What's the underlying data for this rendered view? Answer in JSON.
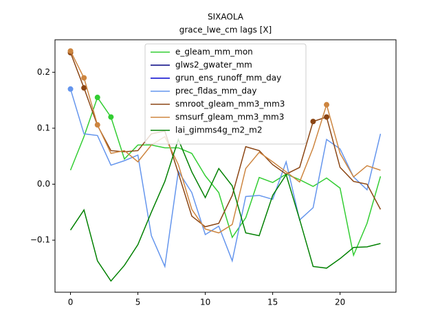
{
  "chart_data": {
    "type": "line",
    "title": "SIXAOLA",
    "subtitle": "grace_lwe_cm lags [X]",
    "x": [
      0,
      1,
      2,
      3,
      4,
      5,
      6,
      7,
      8,
      9,
      10,
      11,
      12,
      13,
      14,
      15,
      16,
      17,
      18,
      19,
      20,
      21,
      22,
      23
    ],
    "series": [
      {
        "name": "e_gleam_mm_mon",
        "color": "#32cd32",
        "values": [
          0.025,
          0.085,
          0.155,
          0.12,
          0.045,
          0.07,
          0.07,
          0.065,
          0.065,
          0.055,
          0.015,
          -0.015,
          -0.095,
          -0.06,
          0.012,
          0.003,
          0.018,
          0.008,
          -0.004,
          0.011,
          -0.007,
          -0.127,
          -0.07,
          0.014
        ],
        "marker_indices": [
          2,
          3
        ]
      },
      {
        "name": "glws2_gwater_mm",
        "color": "#000080",
        "values": [
          null,
          null,
          null,
          null,
          null,
          null,
          null,
          null,
          null,
          null,
          null,
          null,
          null,
          null,
          null,
          null,
          null,
          null,
          null,
          null,
          null,
          null,
          null,
          null
        ],
        "marker_indices": []
      },
      {
        "name": "grun_ens_runoff_mm_day",
        "color": "#0000cd",
        "values": [
          null,
          null,
          null,
          null,
          null,
          null,
          null,
          null,
          null,
          null,
          null,
          null,
          null,
          null,
          null,
          null,
          null,
          null,
          null,
          null,
          null,
          null,
          null,
          null
        ],
        "marker_indices": []
      },
      {
        "name": "prec_fldas_mm_day",
        "color": "#6495ed",
        "values": [
          0.17,
          0.09,
          0.087,
          0.034,
          0.042,
          0.052,
          -0.092,
          -0.147,
          0.023,
          -0.015,
          -0.09,
          -0.075,
          -0.137,
          -0.022,
          -0.02,
          -0.027,
          0.04,
          -0.064,
          -0.042,
          0.08,
          0.063,
          0.013,
          -0.01,
          0.09
        ],
        "marker_indices": [
          0
        ]
      },
      {
        "name": "smroot_gleam_mm3_mm3",
        "color": "#8b4513",
        "values": [
          0.235,
          0.172,
          0.105,
          0.06,
          0.058,
          0.06,
          0.09,
          0.095,
          0.02,
          -0.057,
          -0.076,
          -0.07,
          -0.02,
          0.067,
          0.06,
          0.035,
          0.018,
          0.03,
          0.112,
          0.12,
          0.03,
          0.005,
          0.0,
          -0.045
        ],
        "marker_indices": [
          0,
          1,
          18,
          19
        ]
      },
      {
        "name": "smsurf_gleam_mm3_mm3",
        "color": "#cd853f",
        "values": [
          0.238,
          0.19,
          0.106,
          0.055,
          0.06,
          0.04,
          0.07,
          0.085,
          0.035,
          -0.045,
          -0.08,
          -0.087,
          -0.072,
          0.028,
          0.057,
          0.04,
          0.022,
          0.004,
          0.065,
          0.142,
          0.055,
          0.013,
          0.033,
          0.025
        ],
        "marker_indices": [
          0,
          1,
          2,
          19
        ]
      },
      {
        "name": "lai_gimms4g_m2_m2",
        "color": "#008000",
        "values": [
          -0.082,
          -0.046,
          -0.137,
          -0.173,
          -0.145,
          -0.108,
          -0.05,
          0.005,
          0.08,
          0.022,
          -0.024,
          0.028,
          -0.003,
          -0.087,
          -0.092,
          -0.02,
          0.017,
          -0.063,
          -0.147,
          -0.15,
          -0.133,
          -0.113,
          -0.112,
          -0.106
        ],
        "marker_indices": []
      }
    ],
    "xlim": [
      -1.15,
      24.15
    ],
    "ylim": [
      -0.193,
      0.258
    ],
    "xticks": [
      0,
      5,
      10,
      15,
      20
    ],
    "yticks": [
      {
        "value": -0.1,
        "label": "−0.1"
      },
      {
        "value": 0,
        "label": "0.0"
      },
      0.1,
      0.2
    ],
    "legend": "upper center",
    "grid": false
  }
}
